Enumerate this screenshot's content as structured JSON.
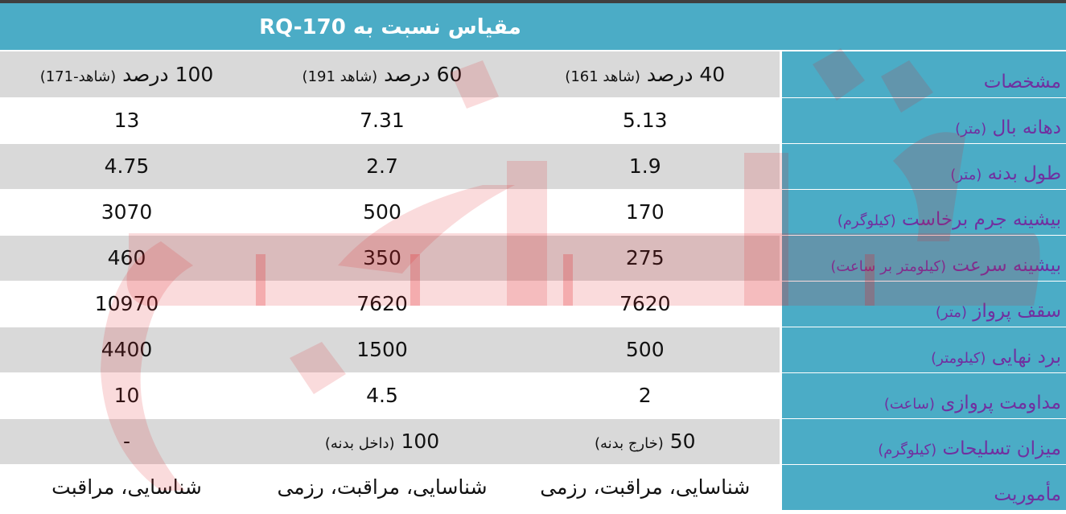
{
  "title": "مقیاس نسبت به RQ-170",
  "columns": [
    {
      "main": "40 درصد",
      "sub": "(شاهد 161)"
    },
    {
      "main": "60 درصد",
      "sub": "(شاهد 191)"
    },
    {
      "main": "100 درصد",
      "sub": "(شاهد-171)"
    }
  ],
  "header_label": "مشخصات",
  "rows": [
    {
      "label": "دهانه بال",
      "unit": "(متر)",
      "values": [
        "5.13",
        "7.31",
        "13"
      ]
    },
    {
      "label": "طول بدنه",
      "unit": "(متر)",
      "values": [
        "1.9",
        "2.7",
        "4.75"
      ]
    },
    {
      "label": "بیشینه جرم برخاست",
      "unit": "(کیلوگرم)",
      "values": [
        "170",
        "500",
        "3070"
      ]
    },
    {
      "label": "بیشینه سرعت",
      "unit": "(کیلومتر بر ساعت)",
      "values": [
        "275",
        "350",
        "460"
      ]
    },
    {
      "label": "سقف پرواز",
      "unit": "(متر)",
      "values": [
        "7620",
        "7620",
        "10970"
      ]
    },
    {
      "label": "برد نهایی",
      "unit": "(کیلومتر)",
      "values": [
        "500",
        "1500",
        "4400"
      ]
    },
    {
      "label": "مداومت پروازی",
      "unit": "(ساعت)",
      "values": [
        "2",
        "4.5",
        "10"
      ]
    }
  ],
  "armament": {
    "label": "میزان تسلیحات",
    "unit": "(کیلوگرم)",
    "values": [
      {
        "main": "50",
        "sub": "(خارج بدنه)"
      },
      {
        "main": "100",
        "sub": "(داخل بدنه)"
      },
      {
        "main": "-",
        "sub": ""
      }
    ]
  },
  "mission": {
    "label": "مأموریت",
    "values": [
      "شناسایی، مراقبت، رزمی",
      "شناسایی، مراقبت، رزمی",
      "شناسایی، مراقبت"
    ]
  },
  "colors": {
    "header_bg": "#4bacc6",
    "label_text": "#7030a0",
    "shade_row": "#d9d9d9",
    "watermark": "#e31e24"
  }
}
